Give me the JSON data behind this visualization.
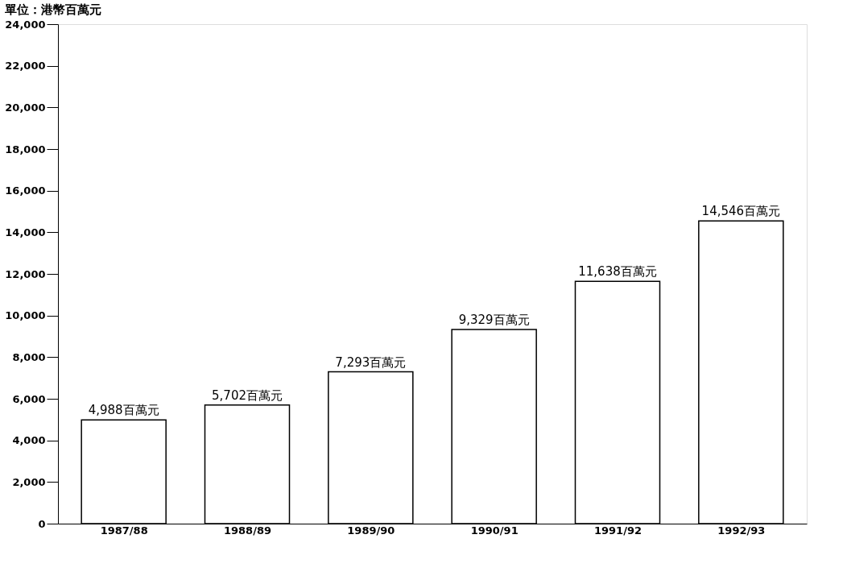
{
  "chart_data": {
    "type": "bar",
    "ylabel": "單位：港幣百萬元",
    "categories": [
      "1987/88",
      "1988/89",
      "1989/90",
      "1990/91",
      "1991/92",
      "1992/93"
    ],
    "values": [
      4988,
      5702,
      7293,
      9329,
      11638,
      14546
    ],
    "value_labels": [
      "4,988百萬元",
      "5,702百萬元",
      "7,293百萬元",
      "9,329百萬元",
      "11,638百萬元",
      "14,546百萬元"
    ],
    "color": "#ffffff",
    "ylim": [
      0,
      24000
    ],
    "yticks": [
      0,
      {
        "value": 2000,
        "label": "2,000"
      },
      {
        "value": 4000,
        "label": "4,000"
      },
      {
        "value": 6000,
        "label": "6,000"
      },
      {
        "value": 8000,
        "label": "8,000"
      },
      {
        "value": 10000,
        "label": "10,000"
      },
      {
        "value": 12000,
        "label": "12,000"
      },
      {
        "value": 14000,
        "label": "14,000"
      },
      {
        "value": 16000,
        "label": "16,000"
      },
      {
        "value": 18000,
        "label": "18,000"
      },
      {
        "value": 20000,
        "label": "20,000"
      },
      {
        "value": 22000,
        "label": "22,000"
      },
      {
        "value": 24000,
        "label": "24,000"
      }
    ],
    "grid": false
  }
}
